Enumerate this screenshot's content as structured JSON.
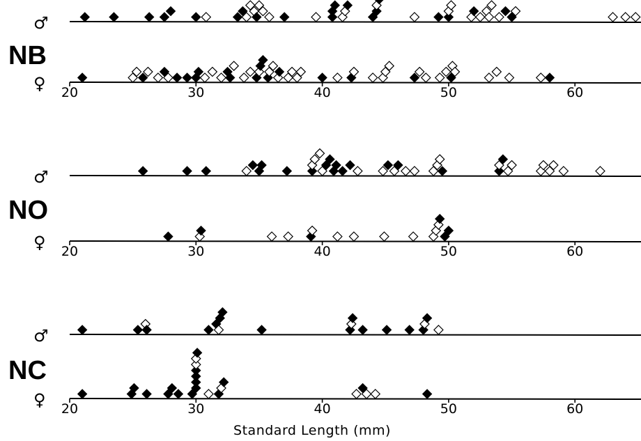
{
  "chart_data": {
    "type": "scatter",
    "xlabel": "Standard Length (mm)",
    "xlim": [
      20,
      65
    ],
    "ticks": [
      20,
      30,
      40,
      50,
      60
    ],
    "panels": [
      {
        "group": "NB",
        "rows": [
          {
            "sex": "♂",
            "filled": [
              21.2,
              23.5,
              26.3,
              27.5,
              28.0,
              30.0,
              33.3,
              33.7,
              34.8,
              37.0,
              40.8,
              40.8,
              41.0,
              42.0,
              44.0,
              44.3,
              44.5,
              49.2,
              50.0,
              52.0,
              54.5,
              55.0
            ],
            "open": [
              30.8,
              34.0,
              34.3,
              34.6,
              35.0,
              35.3,
              35.8,
              39.5,
              41.6,
              41.8,
              44.3,
              47.3,
              50.0,
              50.2,
              51.8,
              52.5,
              53.0,
              53.2,
              53.4,
              54.0,
              55.3,
              63.0,
              64.0,
              64.8
            ]
          },
          {
            "sex": "♀",
            "filled": [
              21.0,
              25.8,
              27.5,
              28.5,
              29.3,
              30.0,
              30.2,
              32.5,
              32.7,
              34.8,
              35.1,
              35.3,
              35.7,
              36.6,
              40.0,
              42.3,
              47.3,
              50.2,
              58.0
            ],
            "open": [
              25.0,
              25.3,
              26.2,
              27.0,
              27.8,
              30.7,
              31.3,
              32.0,
              33.0,
              33.8,
              34.3,
              35.0,
              35.8,
              36.1,
              36.5,
              37.3,
              37.6,
              38.0,
              38.3,
              41.2,
              42.5,
              44.0,
              44.8,
              45.0,
              45.3,
              47.7,
              48.2,
              49.3,
              49.8,
              50.3,
              50.5,
              53.2,
              53.8,
              54.8,
              57.3
            ]
          }
        ]
      },
      {
        "group": "NO",
        "rows": [
          {
            "sex": "♂",
            "filled": [
              25.8,
              29.3,
              30.8,
              34.5,
              35.0,
              35.2,
              37.2,
              39.2,
              40.3,
              40.6,
              40.9,
              41.1,
              41.6,
              42.2,
              45.2,
              46.0,
              49.5,
              54.0,
              54.3
            ],
            "open": [
              34.0,
              39.2,
              39.4,
              39.8,
              40.0,
              42.8,
              44.8,
              45.7,
              46.6,
              47.3,
              48.8,
              49.1,
              49.3,
              54.0,
              54.7,
              55.0,
              57.3,
              57.5,
              58.0,
              58.3,
              59.1,
              62.0
            ]
          },
          {
            "sex": "♀",
            "filled": [
              27.8,
              30.4,
              39.1,
              49.3,
              49.7,
              50.0
            ],
            "open": [
              30.3,
              36.0,
              37.3,
              39.2,
              41.2,
              42.5,
              44.9,
              47.2,
              48.8,
              49.0,
              49.2
            ]
          }
        ]
      },
      {
        "group": "NC",
        "rows": [
          {
            "sex": "♂",
            "filled": [
              21.0,
              25.4,
              26.1,
              31.0,
              31.6,
              31.9,
              32.1,
              35.2,
              42.2,
              42.4,
              43.2,
              45.1,
              46.9,
              48.0,
              48.3
            ],
            "open": [
              26.0,
              31.8,
              42.3,
              48.1,
              49.2
            ]
          },
          {
            "sex": "♀",
            "filled": [
              21.0,
              24.9,
              25.1,
              26.1,
              27.8,
              28.1,
              28.6,
              29.7,
              30.0,
              30.0,
              30.0,
              30.0,
              30.1,
              31.8,
              32.2,
              43.2,
              48.3
            ],
            "open": [
              30.0,
              30.0,
              31.0,
              32.0,
              42.7,
              43.5,
              44.2
            ]
          }
        ]
      }
    ]
  }
}
